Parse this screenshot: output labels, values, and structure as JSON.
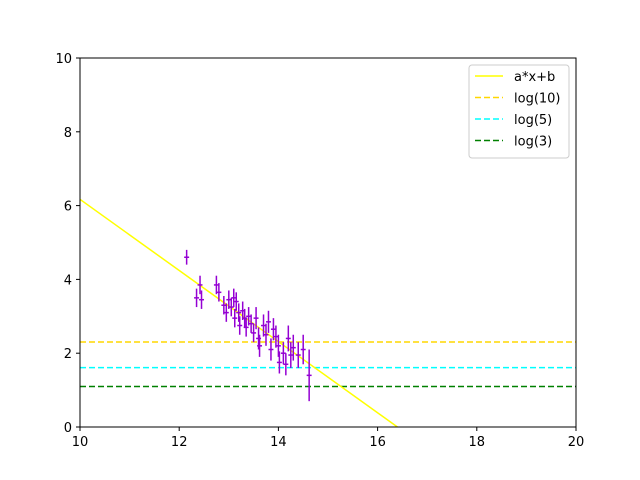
{
  "chart_data": {
    "type": "scatter",
    "title": "",
    "xlabel": "",
    "ylabel": "",
    "xlim": [
      10,
      20
    ],
    "ylim": [
      0,
      10
    ],
    "xticks": [
      10,
      12,
      14,
      16,
      18,
      20
    ],
    "yticks": [
      0,
      2,
      4,
      6,
      8,
      10
    ],
    "grid": false,
    "legend_position": "top-right",
    "fit_line": {
      "label": "a*x+b",
      "color": "#ffff00",
      "points": [
        [
          10,
          6.17
        ],
        [
          16.4,
          0
        ]
      ]
    },
    "hlines": [
      {
        "label": "log(10)",
        "y": 2.3026,
        "color": "#ffd700"
      },
      {
        "label": "log(5)",
        "y": 1.6094,
        "color": "#00ffff"
      },
      {
        "label": "log(3)",
        "y": 1.0986,
        "color": "#008000"
      }
    ],
    "errorbar_color": "#9400d3",
    "points": [
      {
        "x": 12.15,
        "y": 4.6,
        "xerr": 0.05,
        "yerr": 0.2
      },
      {
        "x": 12.35,
        "y": 3.5,
        "xerr": 0.05,
        "yerr": 0.25
      },
      {
        "x": 12.42,
        "y": 3.85,
        "xerr": 0.05,
        "yerr": 0.25
      },
      {
        "x": 12.45,
        "y": 3.45,
        "xerr": 0.05,
        "yerr": 0.25
      },
      {
        "x": 12.75,
        "y": 3.85,
        "xerr": 0.05,
        "yerr": 0.25
      },
      {
        "x": 12.8,
        "y": 3.65,
        "xerr": 0.05,
        "yerr": 0.25
      },
      {
        "x": 12.9,
        "y": 3.3,
        "xerr": 0.05,
        "yerr": 0.25
      },
      {
        "x": 12.95,
        "y": 3.1,
        "xerr": 0.05,
        "yerr": 0.25
      },
      {
        "x": 13.0,
        "y": 3.45,
        "xerr": 0.05,
        "yerr": 0.25
      },
      {
        "x": 13.05,
        "y": 3.25,
        "xerr": 0.05,
        "yerr": 0.25
      },
      {
        "x": 13.1,
        "y": 3.5,
        "xerr": 0.05,
        "yerr": 0.25
      },
      {
        "x": 13.12,
        "y": 2.95,
        "xerr": 0.05,
        "yerr": 0.25
      },
      {
        "x": 13.15,
        "y": 3.4,
        "xerr": 0.05,
        "yerr": 0.25
      },
      {
        "x": 13.2,
        "y": 3.1,
        "xerr": 0.05,
        "yerr": 0.25
      },
      {
        "x": 13.22,
        "y": 2.75,
        "xerr": 0.05,
        "yerr": 0.25
      },
      {
        "x": 13.28,
        "y": 3.15,
        "xerr": 0.05,
        "yerr": 0.25
      },
      {
        "x": 13.32,
        "y": 2.95,
        "xerr": 0.05,
        "yerr": 0.25
      },
      {
        "x": 13.35,
        "y": 2.7,
        "xerr": 0.05,
        "yerr": 0.25
      },
      {
        "x": 13.4,
        "y": 3.0,
        "xerr": 0.05,
        "yerr": 0.25
      },
      {
        "x": 13.45,
        "y": 2.8,
        "xerr": 0.05,
        "yerr": 0.25
      },
      {
        "x": 13.5,
        "y": 2.55,
        "xerr": 0.05,
        "yerr": 0.25
      },
      {
        "x": 13.55,
        "y": 2.95,
        "xerr": 0.05,
        "yerr": 0.3
      },
      {
        "x": 13.6,
        "y": 2.4,
        "xerr": 0.05,
        "yerr": 0.3
      },
      {
        "x": 13.62,
        "y": 2.2,
        "xerr": 0.05,
        "yerr": 0.3
      },
      {
        "x": 13.7,
        "y": 2.75,
        "xerr": 0.05,
        "yerr": 0.3
      },
      {
        "x": 13.75,
        "y": 2.5,
        "xerr": 0.05,
        "yerr": 0.3
      },
      {
        "x": 13.8,
        "y": 2.85,
        "xerr": 0.05,
        "yerr": 0.3
      },
      {
        "x": 13.85,
        "y": 2.1,
        "xerr": 0.05,
        "yerr": 0.3
      },
      {
        "x": 13.9,
        "y": 2.65,
        "xerr": 0.05,
        "yerr": 0.3
      },
      {
        "x": 13.95,
        "y": 2.45,
        "xerr": 0.05,
        "yerr": 0.3
      },
      {
        "x": 14.0,
        "y": 2.2,
        "xerr": 0.05,
        "yerr": 0.3
      },
      {
        "x": 14.02,
        "y": 1.75,
        "xerr": 0.05,
        "yerr": 0.3
      },
      {
        "x": 14.1,
        "y": 2.0,
        "xerr": 0.05,
        "yerr": 0.3
      },
      {
        "x": 14.15,
        "y": 1.7,
        "xerr": 0.05,
        "yerr": 0.3
      },
      {
        "x": 14.2,
        "y": 2.4,
        "xerr": 0.05,
        "yerr": 0.35
      },
      {
        "x": 14.25,
        "y": 1.95,
        "xerr": 0.05,
        "yerr": 0.35
      },
      {
        "x": 14.3,
        "y": 2.15,
        "xerr": 0.05,
        "yerr": 0.35
      },
      {
        "x": 14.4,
        "y": 1.95,
        "xerr": 0.05,
        "yerr": 0.35
      },
      {
        "x": 14.5,
        "y": 2.1,
        "xerr": 0.05,
        "yerr": 0.4
      },
      {
        "x": 14.62,
        "y": 1.4,
        "xerr": 0.05,
        "yerr": 0.7
      }
    ]
  }
}
